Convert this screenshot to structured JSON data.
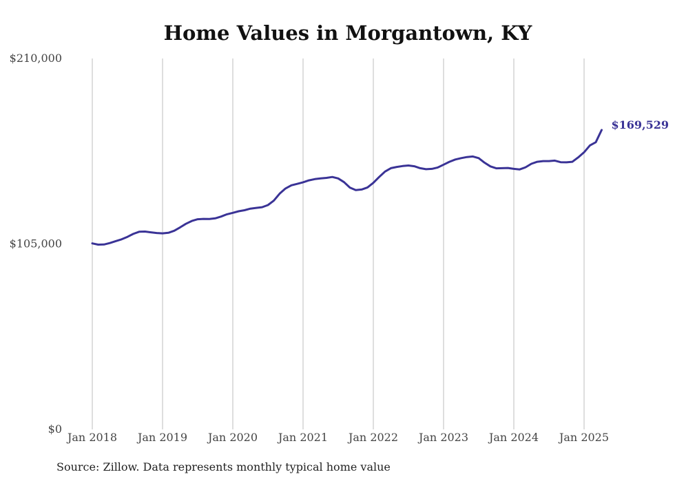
{
  "chart_data": {
    "type": "line",
    "title": "Home Values in Morgantown, KY",
    "source": "Source: Zillow. Data represents monthly typical home value",
    "xlabel": "",
    "ylabel": "",
    "ylim": [
      0,
      210000
    ],
    "yticks": [
      {
        "value": 0,
        "label": "$0"
      },
      {
        "value": 105000,
        "label": "$105,000"
      },
      {
        "value": 210000,
        "label": "$210,000"
      }
    ],
    "xticks": [
      {
        "value": "2018-01",
        "label": "Jan 2018"
      },
      {
        "value": "2019-01",
        "label": "Jan 2019"
      },
      {
        "value": "2020-01",
        "label": "Jan 2020"
      },
      {
        "value": "2021-01",
        "label": "Jan 2021"
      },
      {
        "value": "2022-01",
        "label": "Jan 2022"
      },
      {
        "value": "2023-01",
        "label": "Jan 2023"
      },
      {
        "value": "2024-01",
        "label": "Jan 2024"
      },
      {
        "value": "2025-01",
        "label": "Jan 2025"
      }
    ],
    "grid": "vertical",
    "line_color": "#3a3396",
    "end_label": "$169,529",
    "series": [
      {
        "x": [
          "2018-01",
          "2018-02",
          "2018-03",
          "2018-04",
          "2018-05",
          "2018-06",
          "2018-07",
          "2018-08",
          "2018-09",
          "2018-10",
          "2018-11",
          "2018-12",
          "2019-01",
          "2019-02",
          "2019-03",
          "2019-04",
          "2019-05",
          "2019-06",
          "2019-07",
          "2019-08",
          "2019-09",
          "2019-10",
          "2019-11",
          "2019-12",
          "2020-01",
          "2020-02",
          "2020-03",
          "2020-04",
          "2020-05",
          "2020-06",
          "2020-07",
          "2020-08",
          "2020-09",
          "2020-10",
          "2020-11",
          "2020-12",
          "2021-01",
          "2021-02",
          "2021-03",
          "2021-04",
          "2021-05",
          "2021-06",
          "2021-07",
          "2021-08",
          "2021-09",
          "2021-10",
          "2021-11",
          "2021-12",
          "2022-01",
          "2022-02",
          "2022-03",
          "2022-04",
          "2022-05",
          "2022-06",
          "2022-07",
          "2022-08",
          "2022-09",
          "2022-10",
          "2022-11",
          "2022-12",
          "2023-01",
          "2023-02",
          "2023-03",
          "2023-04",
          "2023-05",
          "2023-06",
          "2023-07",
          "2023-08",
          "2023-09",
          "2023-10",
          "2023-11",
          "2023-12",
          "2024-01",
          "2024-02",
          "2024-03",
          "2024-04",
          "2024-05",
          "2024-06",
          "2024-07",
          "2024-08",
          "2024-09",
          "2024-10",
          "2024-11",
          "2024-12",
          "2025-01",
          "2025-02",
          "2025-03",
          "2025-04"
        ],
        "values": [
          105300,
          104600,
          104700,
          105500,
          106600,
          107600,
          109000,
          110700,
          111900,
          112000,
          111600,
          111200,
          111000,
          111300,
          112500,
          114400,
          116400,
          118000,
          119000,
          119200,
          119100,
          119500,
          120500,
          121800,
          122600,
          123500,
          124100,
          125000,
          125400,
          125800,
          127000,
          129500,
          133500,
          136400,
          138200,
          139000,
          139900,
          141000,
          141700,
          142100,
          142400,
          142900,
          142100,
          140000,
          136900,
          135500,
          135800,
          137000,
          139600,
          142900,
          146000,
          147900,
          148600,
          149100,
          149400,
          149000,
          147900,
          147300,
          147500,
          148300,
          149900,
          151500,
          152800,
          153600,
          154200,
          154500,
          153600,
          151000,
          148900,
          147800,
          147900,
          148000,
          147500,
          147200,
          148400,
          150400,
          151500,
          151900,
          151900,
          152200,
          151300,
          151200,
          151500,
          154000,
          156900,
          160800,
          162600,
          169529
        ]
      }
    ]
  }
}
